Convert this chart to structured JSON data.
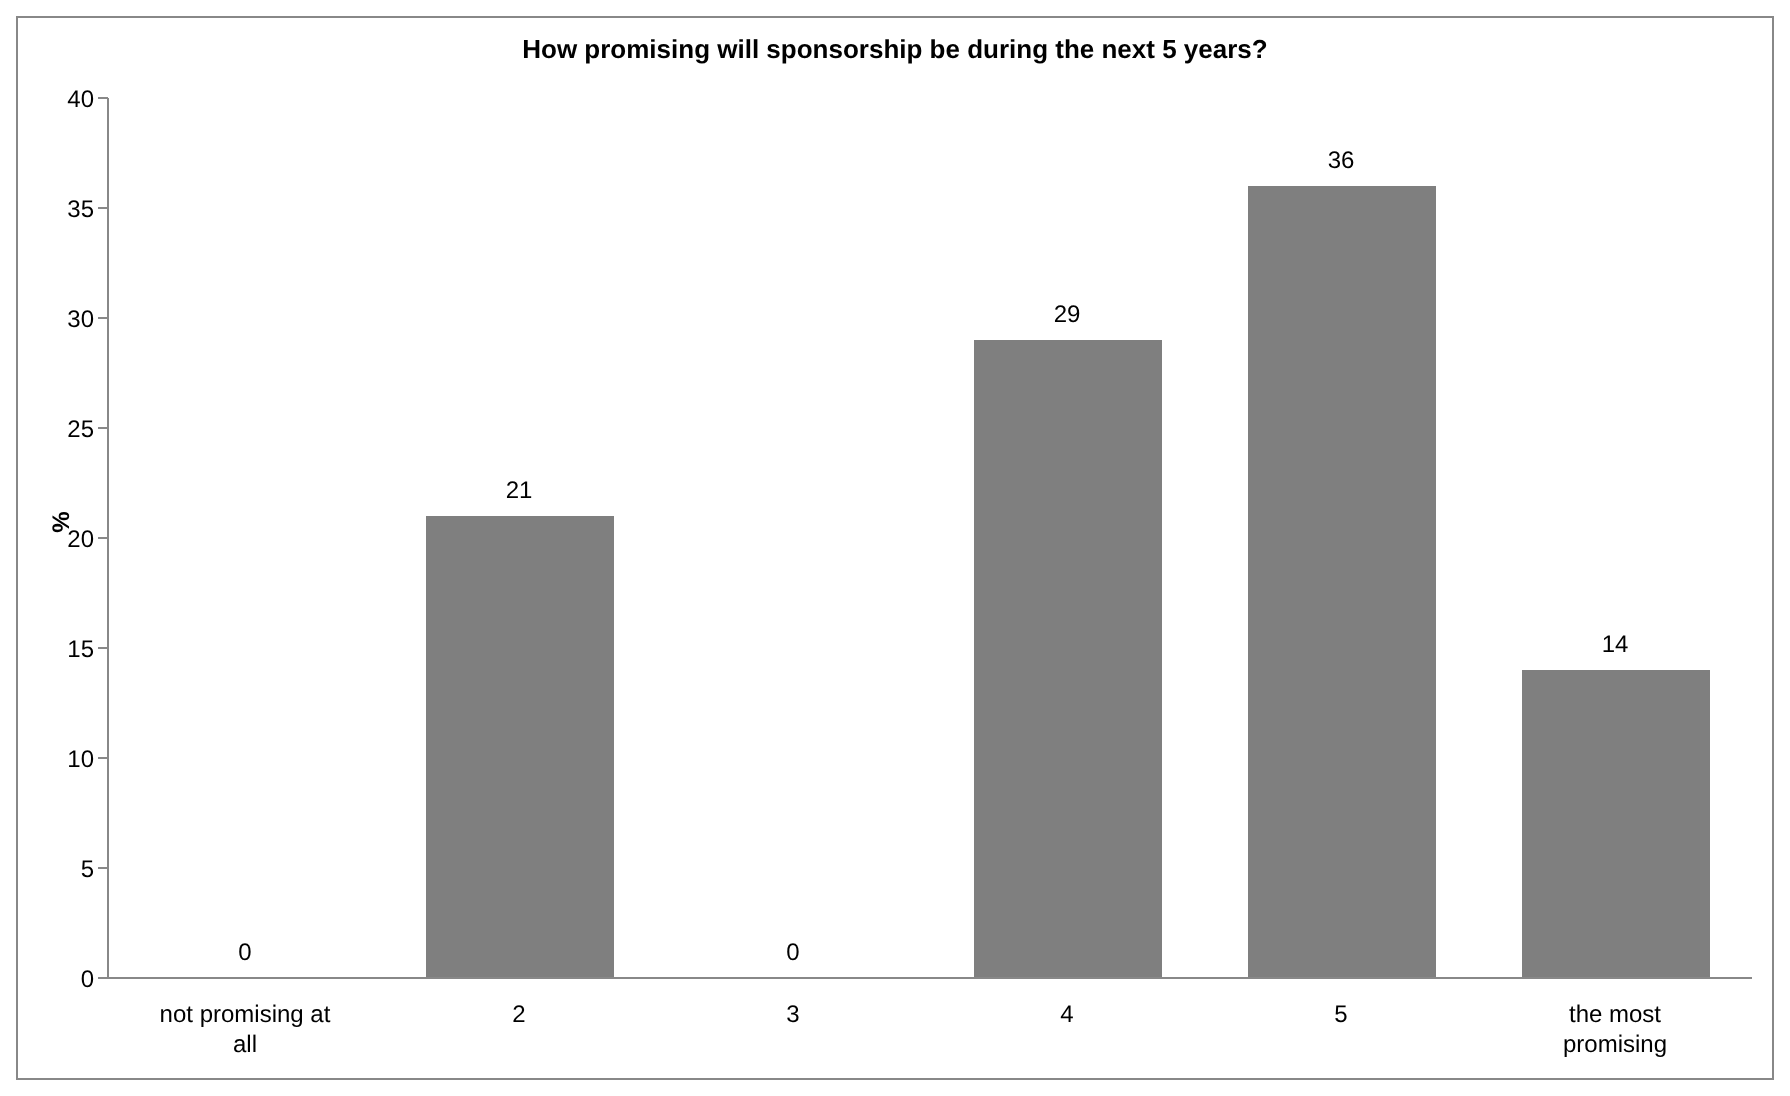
{
  "chart_data": {
    "type": "bar",
    "title": "How promising will sponsorship be during the next 5 years?",
    "ylabel": "%",
    "categories": [
      "not promising at all",
      "2",
      "3",
      "4",
      "5",
      "the most promising"
    ],
    "values": [
      0,
      21,
      0,
      29,
      36,
      14
    ],
    "color": "#7f7f7f",
    "ylim": [
      0,
      40
    ],
    "yticks": [
      0,
      5,
      10,
      15,
      20,
      25,
      30,
      35,
      40
    ],
    "data_labels": true
  }
}
